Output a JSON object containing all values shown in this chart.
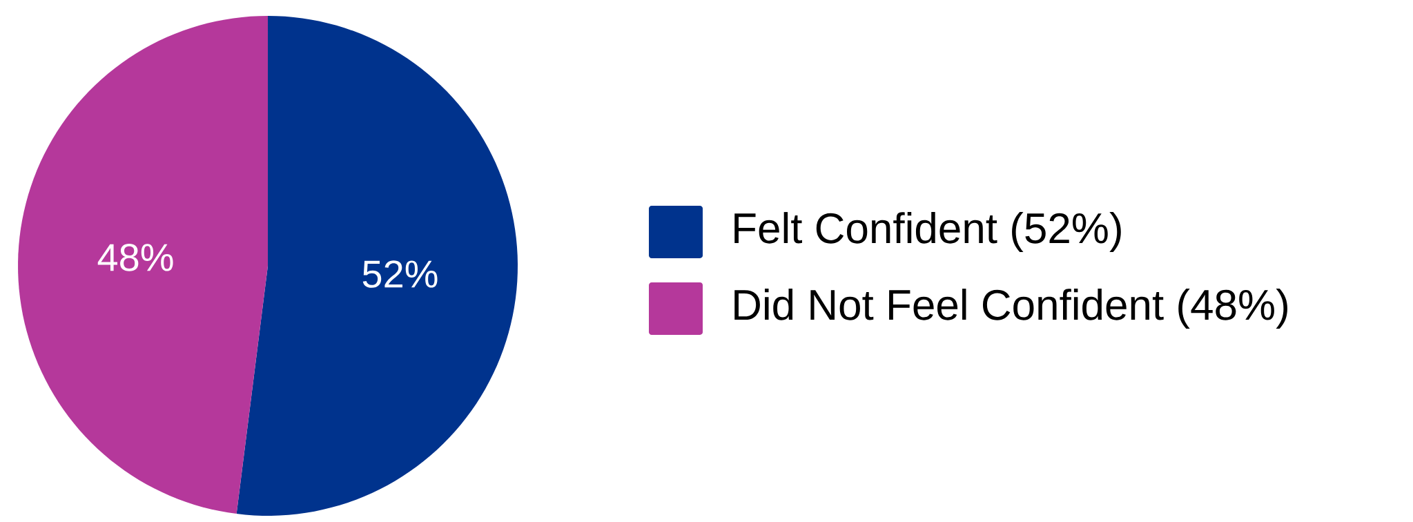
{
  "chart_data": {
    "type": "pie",
    "categories": [
      "Felt Confident (52%)",
      "Did Not Feel Confident (48%)"
    ],
    "values": [
      52,
      48
    ],
    "colors": [
      "#00338d",
      "#b5389b"
    ],
    "value_labels": [
      "52%",
      "48%"
    ],
    "legend": "right"
  }
}
